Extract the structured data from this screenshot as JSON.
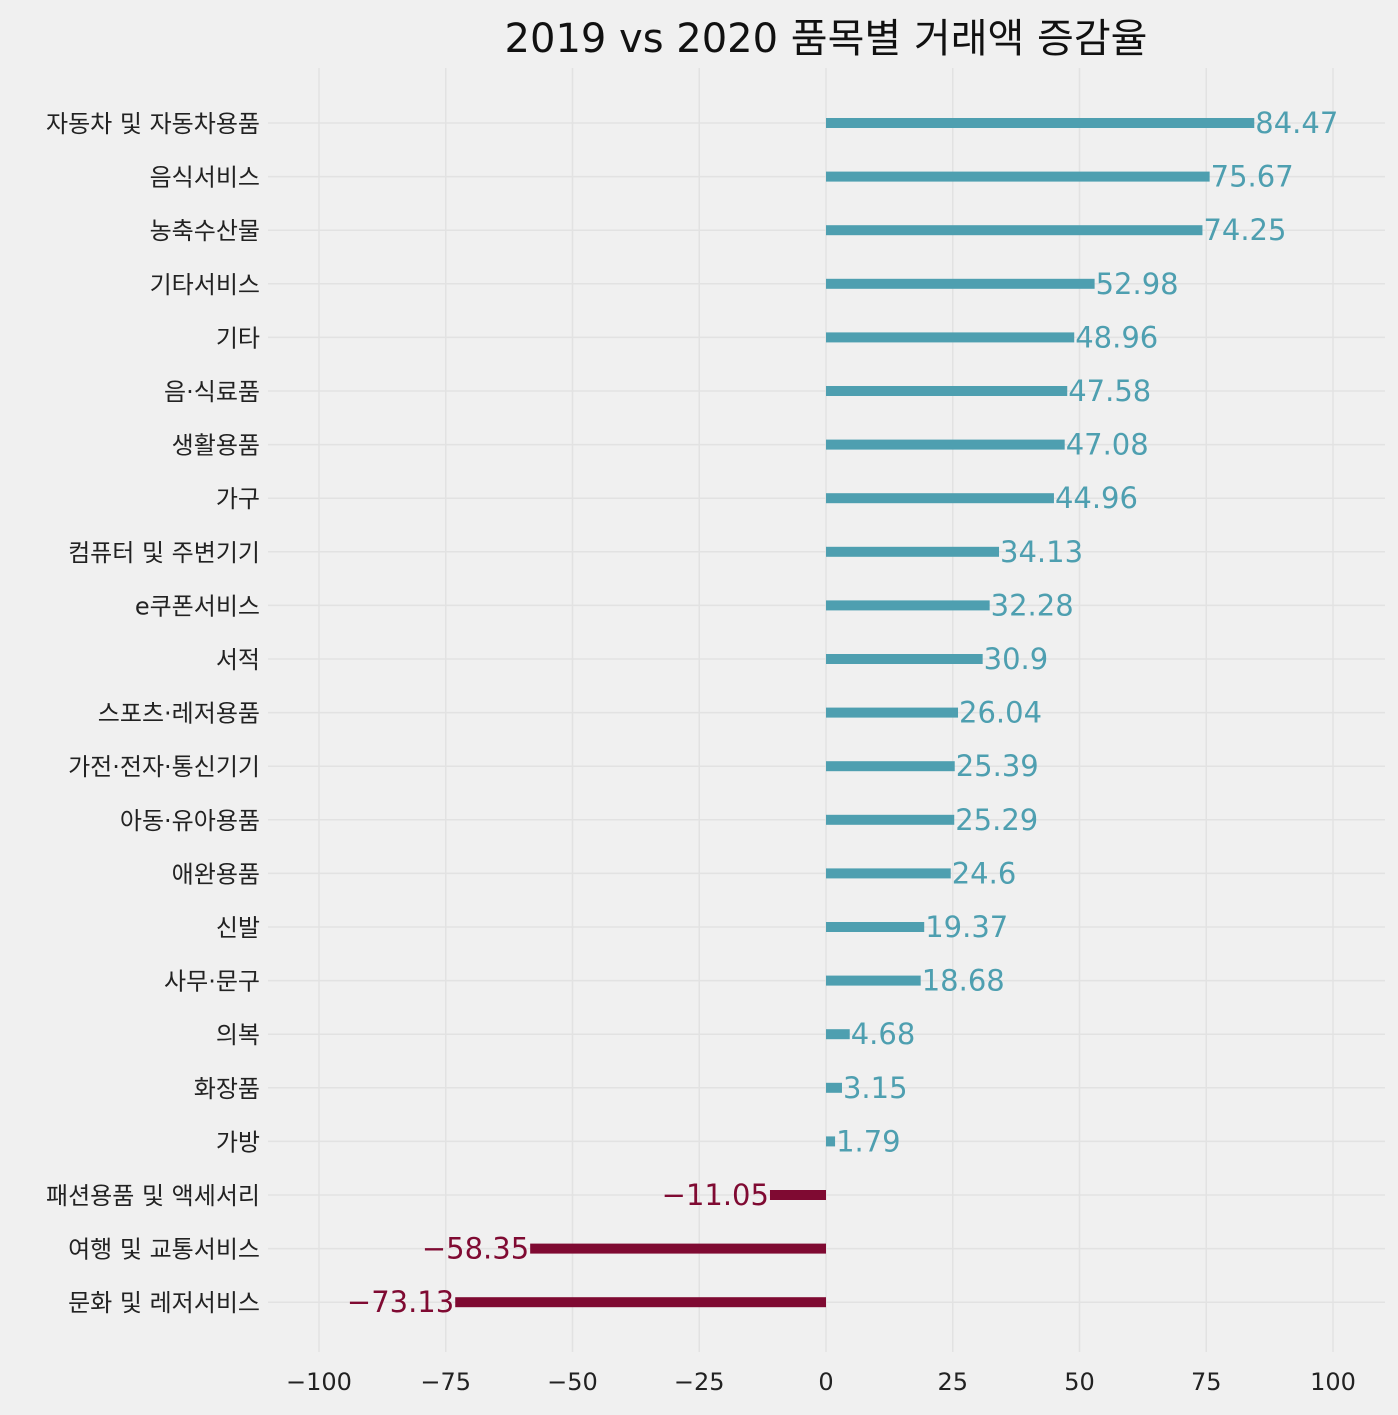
{
  "chart_data": {
    "type": "bar",
    "orientation": "horizontal",
    "title": "2019 vs 2020 품목별 거래액 증감율",
    "xlabel": "",
    "ylabel": "",
    "xlim": [
      -110,
      110
    ],
    "xticks": [
      -100,
      -75,
      -50,
      -25,
      0,
      25,
      50,
      75,
      100
    ],
    "xtick_labels": [
      "−100",
      "−75",
      "−50",
      "−25",
      "0",
      "25",
      "50",
      "75",
      "100"
    ],
    "grid": true,
    "colors": {
      "positive": "#4e9fb0",
      "negative": "#7f0a32",
      "background": "#f0f0f0"
    },
    "categories": [
      "자동차 및 자동차용품",
      "음식서비스",
      "농축수산물",
      "기타서비스",
      "기타",
      "음·식료품",
      "생활용품",
      "가구",
      "컴퓨터 및 주변기기",
      "e쿠폰서비스",
      "서적",
      "스포츠·레저용품",
      "가전·전자·통신기기",
      "아동·유아용품",
      "애완용품",
      "신발",
      "사무·문구",
      "의복",
      "화장품",
      "가방",
      "패션용품 및 액세서리",
      "여행 및 교통서비스",
      "문화 및 레저서비스"
    ],
    "values": [
      84.47,
      75.67,
      74.25,
      52.98,
      48.96,
      47.58,
      47.08,
      44.96,
      34.13,
      32.28,
      30.9,
      26.04,
      25.39,
      25.29,
      24.6,
      19.37,
      18.68,
      4.68,
      3.15,
      1.79,
      -11.05,
      -58.35,
      -73.13
    ],
    "value_labels": [
      "84.47",
      "75.67",
      "74.25",
      "52.98",
      "48.96",
      "47.58",
      "47.08",
      "44.96",
      "34.13",
      "32.28",
      "30.9",
      "26.04",
      "25.39",
      "25.29",
      "24.6",
      "19.37",
      "18.68",
      "4.68",
      "3.15",
      "1.79",
      "−11.05",
      "−58.35",
      "−73.13"
    ]
  }
}
